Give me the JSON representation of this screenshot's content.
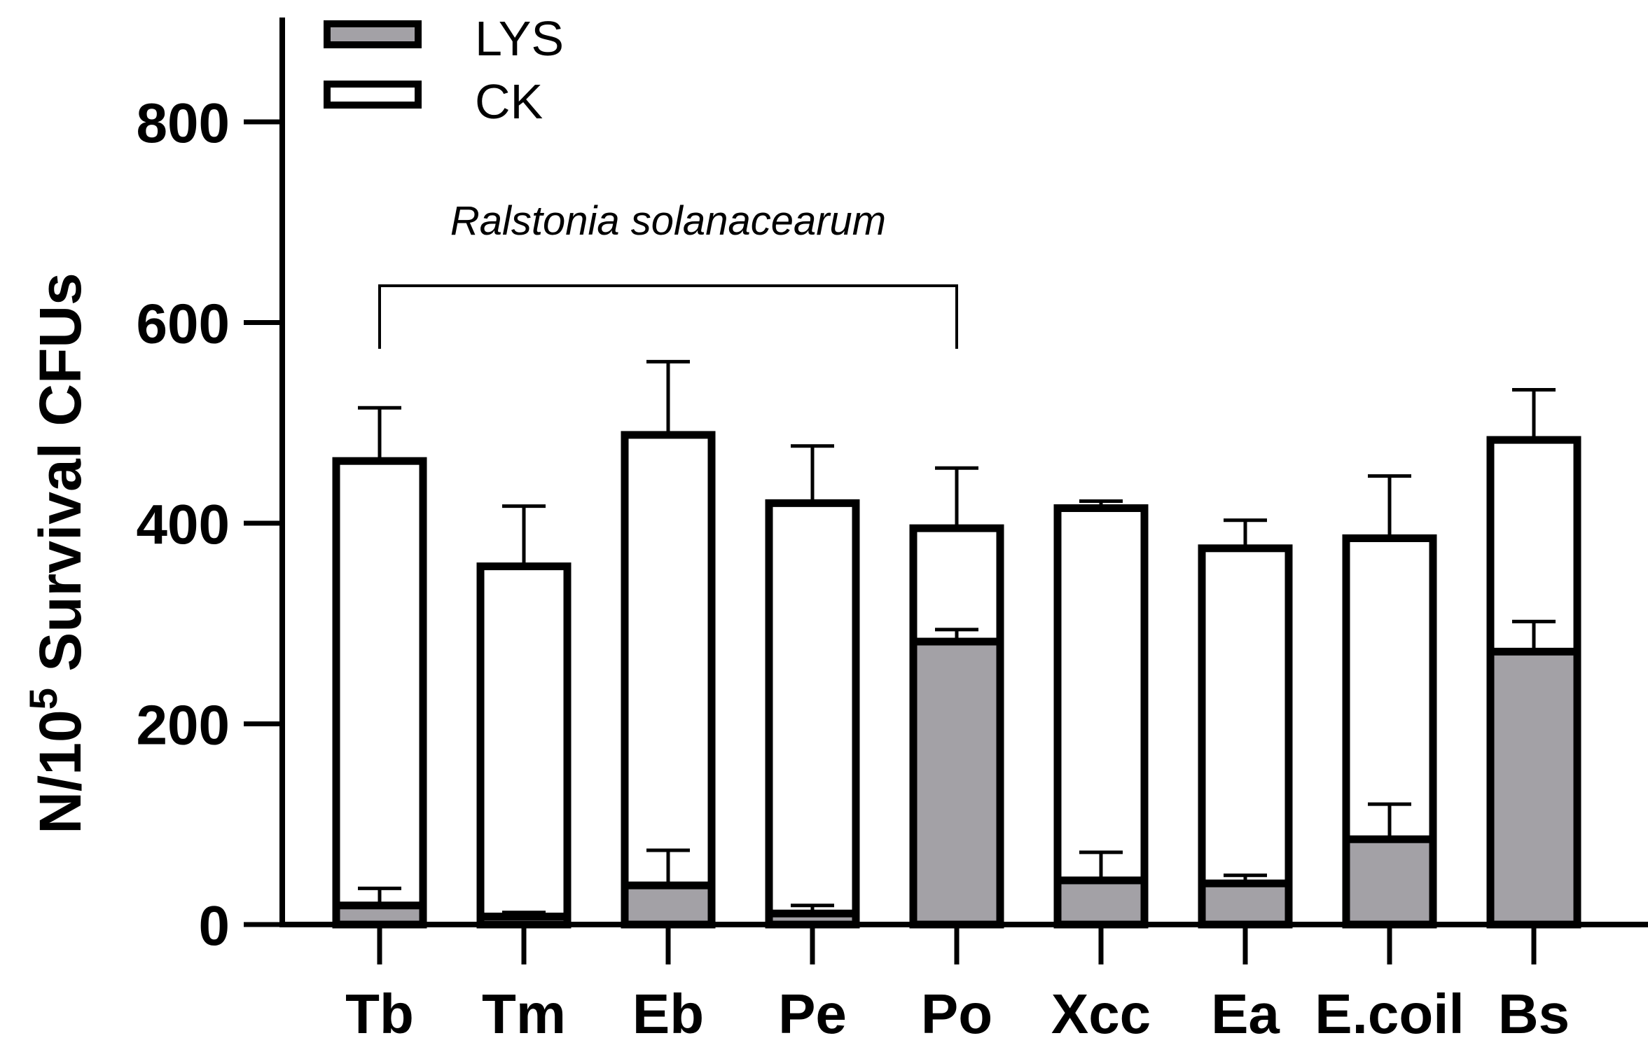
{
  "chart_data": {
    "type": "bar",
    "categories": [
      "Tb",
      "Tm",
      "Eb",
      "Pe",
      "Po",
      "Xcc",
      "Ea",
      "E.coil",
      "Bs"
    ],
    "series": [
      {
        "name": "CK",
        "values": [
          462,
          357,
          488,
          420,
          395,
          415,
          375,
          385,
          483
        ],
        "errors": [
          53,
          60,
          73,
          57,
          60,
          7,
          28,
          62,
          50
        ],
        "fill": "#ffffff"
      },
      {
        "name": "LYS",
        "values": [
          19,
          8,
          39,
          11,
          282,
          44,
          41,
          85,
          272
        ],
        "errors": [
          17,
          4,
          35,
          8,
          12,
          28,
          8,
          35,
          30
        ],
        "fill": "#a3a1a6"
      }
    ],
    "ylabel_main": "N/10",
    "ylabel_sup": "5",
    "ylabel_rest": " Survival CFUs",
    "yticks": [
      0,
      200,
      400,
      600,
      800
    ],
    "ylim": [
      0,
      900
    ],
    "legend_placement": "top-left",
    "annotation": {
      "text": "Ralstonia solanacearum",
      "from_category": "Tb",
      "to_category": "Po"
    },
    "colors": {
      "axis": "#000000",
      "lys_fill": "#a3a1a6",
      "ck_fill": "#ffffff"
    }
  }
}
